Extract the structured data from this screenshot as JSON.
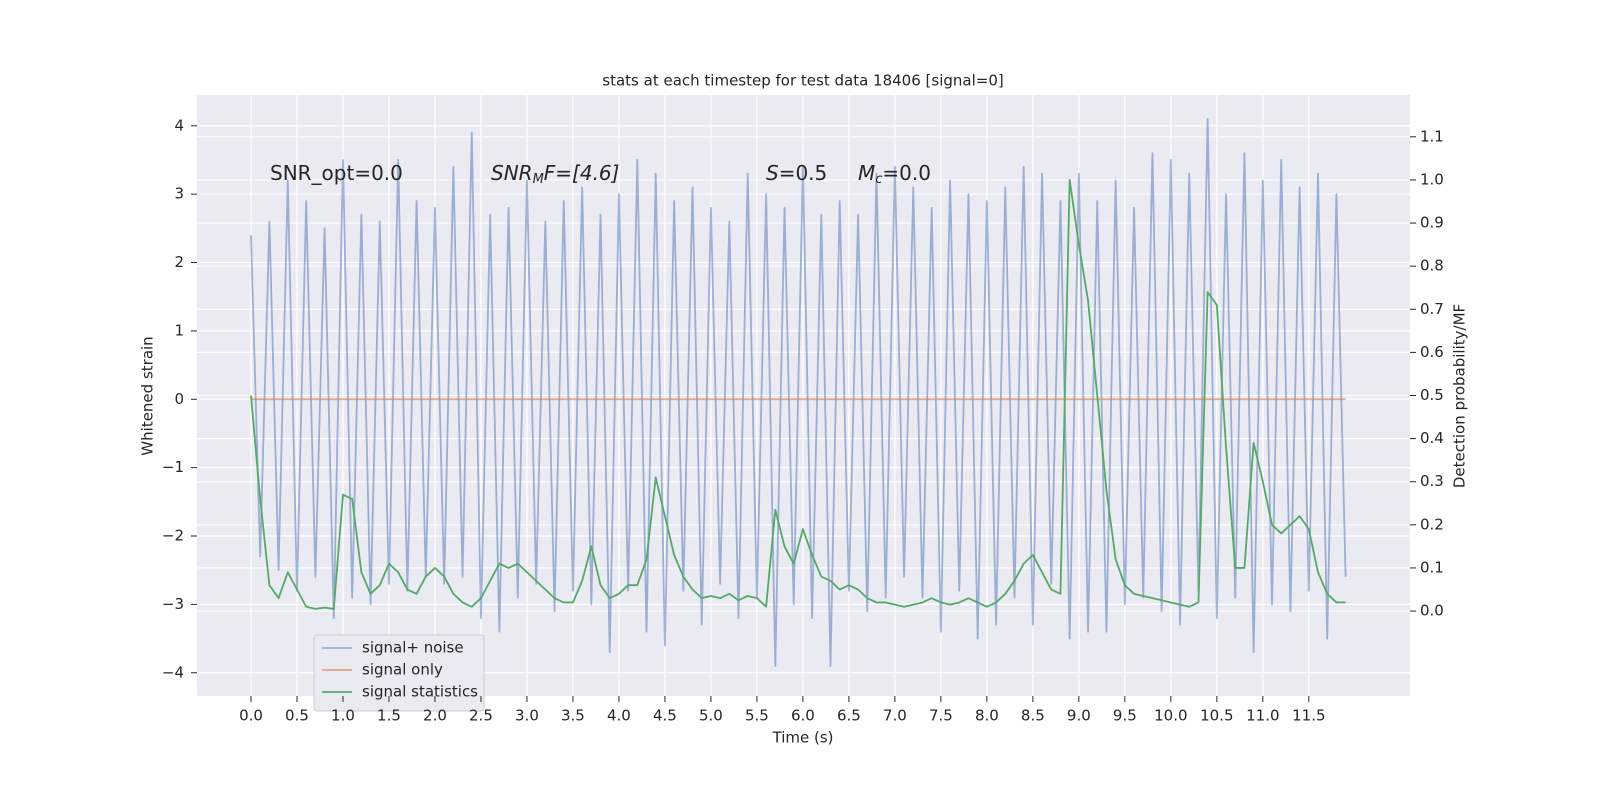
{
  "chart_data": {
    "type": "line",
    "title": "stats at each timestep for test data 18406 [signal=0]",
    "x_label": "Time (s)",
    "y_label": "Whitened strain",
    "y2_label": "Detection probability/MF",
    "annotations": [
      [
        "SNR_opt=0.0"
      ],
      [
        "SNR",
        "M",
        "F=[4.6]"
      ],
      [
        "S",
        "=0.5"
      ],
      [
        "M",
        "c",
        "=0.0"
      ]
    ],
    "grid": true,
    "background": "#eaeaf2",
    "legend": "lower left",
    "xlim": [
      -0.587,
      12.6
    ],
    "ylim": [
      -4.34,
      4.45
    ],
    "y2lim": [
      -0.197,
      1.197
    ],
    "xticks": [
      {
        "value": 0,
        "label": "0.0"
      },
      {
        "value": 0.5,
        "label": "0.5"
      },
      {
        "value": 1,
        "label": "1.0"
      },
      {
        "value": 1.5,
        "label": "1.5"
      },
      {
        "value": 2,
        "label": "2.0"
      },
      {
        "value": 2.5,
        "label": "2.5"
      },
      {
        "value": 3,
        "label": "3.0"
      },
      {
        "value": 3.5,
        "label": "3.5"
      },
      {
        "value": 4,
        "label": "4.0"
      },
      {
        "value": 4.5,
        "label": "4.5"
      },
      {
        "value": 5,
        "label": "5.0"
      },
      {
        "value": 5.5,
        "label": "5.5"
      },
      {
        "value": 6,
        "label": "6.0"
      },
      {
        "value": 6.5,
        "label": "6.5"
      },
      {
        "value": 7,
        "label": "7.0"
      },
      {
        "value": 7.5,
        "label": "7.5"
      },
      {
        "value": 8,
        "label": "8.0"
      },
      {
        "value": 8.5,
        "label": "8.5"
      },
      {
        "value": 9,
        "label": "9.0"
      },
      {
        "value": 9.5,
        "label": "9.5"
      },
      {
        "value": 10,
        "label": "10.0"
      },
      {
        "value": 10.5,
        "label": "10.5"
      },
      {
        "value": 11,
        "label": "11.0"
      },
      {
        "value": 11.5,
        "label": "11.5"
      }
    ],
    "yticks": [
      {
        "value": -4,
        "label": "−4"
      },
      {
        "value": -3,
        "label": "−3"
      },
      {
        "value": -2,
        "label": "−2"
      },
      {
        "value": -1,
        "label": "−1"
      },
      0,
      1,
      2,
      3,
      4
    ],
    "y2ticks": [
      {
        "value": 0,
        "label": "0.0"
      },
      {
        "value": 0.1,
        "label": "0.1"
      },
      {
        "value": 0.2,
        "label": "0.2"
      },
      {
        "value": 0.3,
        "label": "0.3"
      },
      {
        "value": 0.4,
        "label": "0.4"
      },
      {
        "value": 0.5,
        "label": "0.5"
      },
      {
        "value": 0.6,
        "label": "0.6"
      },
      {
        "value": 0.7,
        "label": "0.7"
      },
      {
        "value": 0.8,
        "label": "0.8"
      },
      {
        "value": 0.9,
        "label": "0.9"
      },
      {
        "value": 1,
        "label": "1.0"
      },
      {
        "value": 1.1,
        "label": "1.1"
      }
    ],
    "x": [
      0,
      0.1,
      0.2,
      0.3,
      0.4,
      0.5,
      0.6,
      0.7,
      0.8,
      0.9,
      1,
      1.1,
      1.2,
      1.3,
      1.4,
      1.5,
      1.6,
      1.7,
      1.8,
      1.9,
      2,
      2.1,
      2.2,
      2.3,
      2.4,
      2.5,
      2.6,
      2.7,
      2.8,
      2.9,
      3,
      3.1,
      3.2,
      3.3,
      3.4,
      3.5,
      3.6,
      3.7,
      3.8,
      3.9,
      4,
      4.1,
      4.2,
      4.3,
      4.4,
      4.5,
      4.6,
      4.7,
      4.8,
      4.9,
      5,
      5.1,
      5.2,
      5.3,
      5.4,
      5.5,
      5.6,
      5.7,
      5.8,
      5.9,
      6,
      6.1,
      6.2,
      6.3,
      6.4,
      6.5,
      6.6,
      6.7,
      6.8,
      6.9,
      7,
      7.1,
      7.2,
      7.3,
      7.4,
      7.5,
      7.6,
      7.7,
      7.8,
      7.9,
      8,
      8.1,
      8.2,
      8.3,
      8.4,
      8.5,
      8.6,
      8.7,
      8.8,
      8.9,
      9,
      9.1,
      9.2,
      9.3,
      9.4,
      9.5,
      9.6,
      9.7,
      9.8,
      9.9,
      10,
      10.1,
      10.2,
      10.3,
      10.4,
      10.5,
      10.6,
      10.7,
      10.8,
      10.9,
      11,
      11.1,
      11.2,
      11.3,
      11.4,
      11.5,
      11.6,
      11.7,
      11.8,
      11.9
    ],
    "series": [
      {
        "name": "signal+ noise",
        "color": "#4c72b0",
        "opacity": 0.5,
        "axis": "y",
        "values": [
          2.4,
          -2.3,
          2.6,
          -2.5,
          3.2,
          -2.8,
          2.9,
          -2.6,
          2.5,
          -3.2,
          3.5,
          -2.9,
          2.7,
          -3.0,
          2.6,
          -2.7,
          3.5,
          -2.8,
          2.9,
          -2.6,
          2.8,
          -2.7,
          3.4,
          -2.6,
          3.9,
          -3.2,
          2.7,
          -3.4,
          2.8,
          -2.9,
          3.2,
          -2.7,
          2.6,
          -3.1,
          2.9,
          -2.8,
          3.1,
          -3.0,
          2.7,
          -3.7,
          3.0,
          -2.8,
          3.5,
          -3.4,
          3.3,
          -3.6,
          2.9,
          -2.8,
          3.1,
          -3.3,
          2.8,
          -2.7,
          2.6,
          -3.2,
          3.3,
          -2.9,
          3.0,
          -3.9,
          2.8,
          -3.0,
          3.4,
          -3.2,
          2.7,
          -3.9,
          2.9,
          -2.8,
          2.7,
          -3.1,
          3.3,
          -2.9,
          3.4,
          -2.6,
          3.1,
          -2.9,
          2.8,
          -3.4,
          3.2,
          -2.8,
          3.0,
          -3.5,
          2.9,
          -3.3,
          3.1,
          -2.9,
          3.4,
          -3.3,
          3.3,
          -2.7,
          2.9,
          -3.5,
          3.3,
          -3.4,
          2.9,
          -3.4,
          3.2,
          -3.0,
          2.8,
          -2.9,
          3.6,
          -3.1,
          3.5,
          -3.3,
          3.3,
          -2.8,
          4.1,
          -3.2,
          3.0,
          -2.9,
          3.6,
          -3.7,
          3.2,
          -3.0,
          3.5,
          -3.1,
          3.1,
          -2.8,
          3.3,
          -3.5,
          3.0,
          -2.6
        ]
      },
      {
        "name": "signal only",
        "color": "#dd8452",
        "opacity": 0.7,
        "axis": "y",
        "x": [
          0,
          11.9
        ],
        "values": [
          0,
          0
        ]
      },
      {
        "name": "signal statistics",
        "color": "#55a868",
        "opacity": 1,
        "axis": "y2",
        "values": [
          0.5,
          0.26,
          0.06,
          0.03,
          0.09,
          0.05,
          0.01,
          0.005,
          0.008,
          0.005,
          0.27,
          0.26,
          0.09,
          0.04,
          0.06,
          0.11,
          0.09,
          0.05,
          0.04,
          0.08,
          0.1,
          0.08,
          0.04,
          0.02,
          0.01,
          0.03,
          0.07,
          0.11,
          0.1,
          0.11,
          0.09,
          0.07,
          0.05,
          0.03,
          0.02,
          0.02,
          0.07,
          0.15,
          0.06,
          0.03,
          0.04,
          0.06,
          0.06,
          0.12,
          0.31,
          0.22,
          0.13,
          0.08,
          0.05,
          0.03,
          0.035,
          0.03,
          0.04,
          0.025,
          0.035,
          0.03,
          0.01,
          0.235,
          0.15,
          0.11,
          0.19,
          0.13,
          0.08,
          0.07,
          0.05,
          0.06,
          0.05,
          0.03,
          0.02,
          0.02,
          0.015,
          0.01,
          0.015,
          0.02,
          0.03,
          0.02,
          0.015,
          0.02,
          0.03,
          0.02,
          0.01,
          0.02,
          0.04,
          0.07,
          0.11,
          0.13,
          0.09,
          0.05,
          0.04,
          1.0,
          0.85,
          0.72,
          0.5,
          0.28,
          0.12,
          0.06,
          0.04,
          0.035,
          0.03,
          0.025,
          0.02,
          0.015,
          0.01,
          0.02,
          0.74,
          0.71,
          0.38,
          0.1,
          0.1,
          0.39,
          0.3,
          0.2,
          0.18,
          0.2,
          0.22,
          0.19,
          0.09,
          0.04,
          0.02,
          0.02
        ]
      }
    ]
  }
}
